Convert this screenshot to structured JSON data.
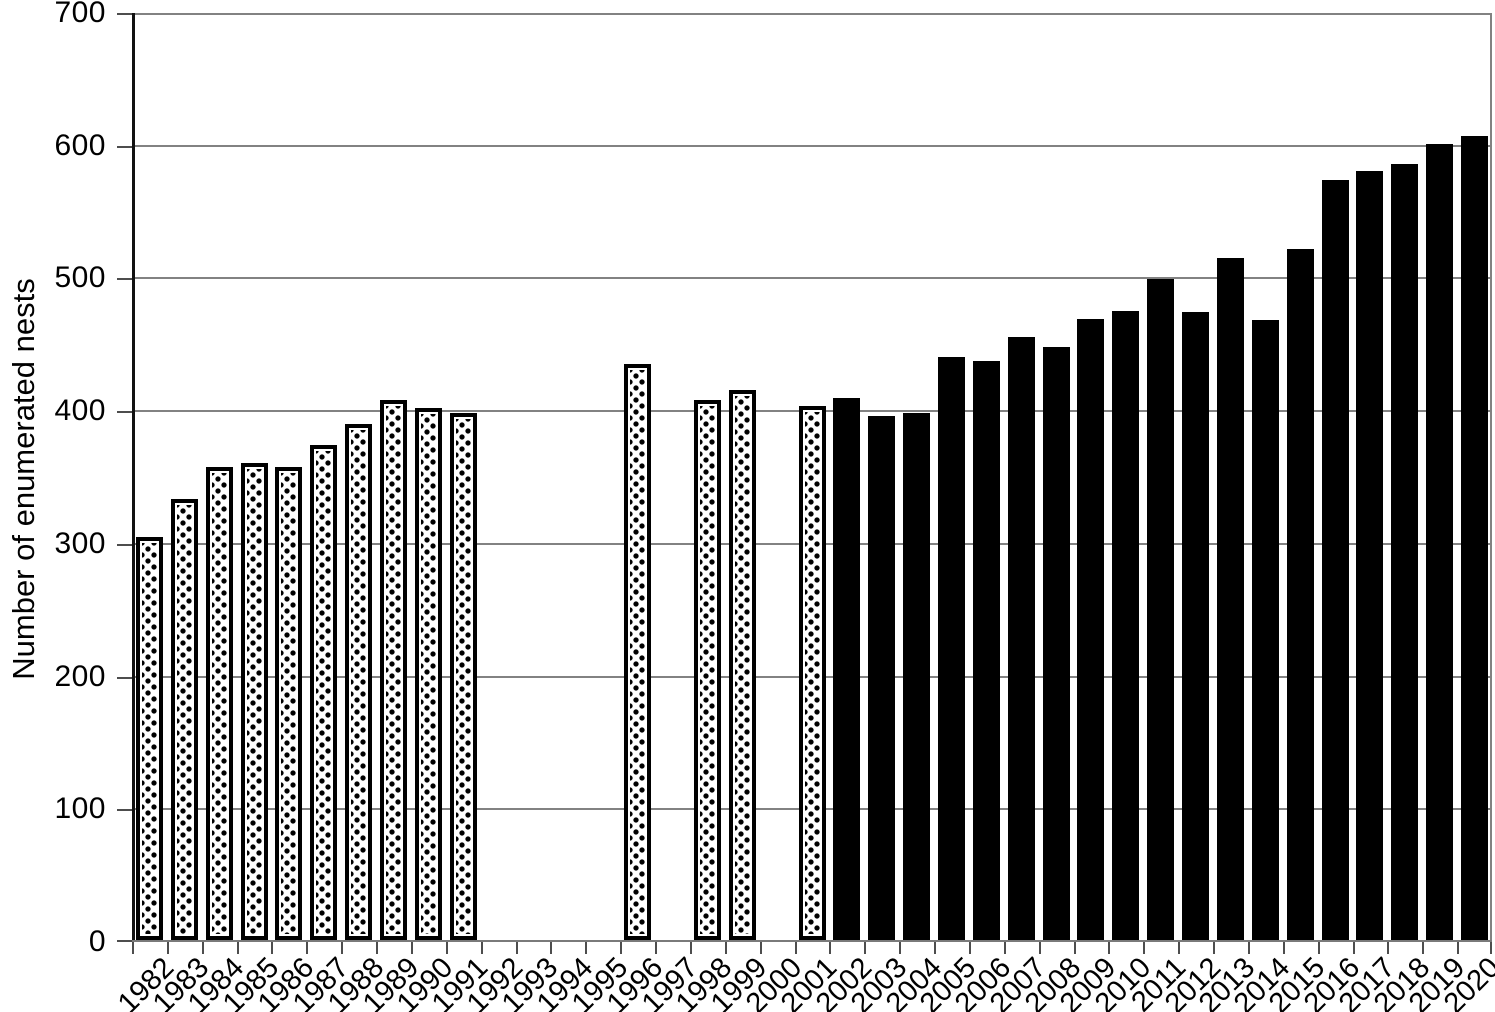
{
  "chart_data": {
    "type": "bar",
    "title": "",
    "xlabel": "",
    "ylabel": "Number of enumerated nests",
    "ylim": [
      0,
      700
    ],
    "ytick_step": 100,
    "ytick_labels": [
      "700",
      "600",
      "500",
      "400",
      "300",
      "200",
      "100",
      "0"
    ],
    "grid": true,
    "legend": null,
    "style_note": "single series; stippled-pattern bars 1982-2001, solid black bars 2002-2020; years 1992-1995, 1997 and 2000 have no bar",
    "bars": [
      {
        "year": "1982",
        "value": 304,
        "style": "dotted"
      },
      {
        "year": "1983",
        "value": 333,
        "style": "dotted"
      },
      {
        "year": "1984",
        "value": 357,
        "style": "dotted"
      },
      {
        "year": "1985",
        "value": 360,
        "style": "dotted"
      },
      {
        "year": "1986",
        "value": 357,
        "style": "dotted"
      },
      {
        "year": "1987",
        "value": 374,
        "style": "dotted"
      },
      {
        "year": "1988",
        "value": 390,
        "style": "dotted"
      },
      {
        "year": "1989",
        "value": 408,
        "style": "dotted"
      },
      {
        "year": "1990",
        "value": 402,
        "style": "dotted"
      },
      {
        "year": "1991",
        "value": 398,
        "style": "dotted"
      },
      {
        "year": "1992",
        "value": null,
        "style": "none"
      },
      {
        "year": "1993",
        "value": null,
        "style": "none"
      },
      {
        "year": "1994",
        "value": null,
        "style": "none"
      },
      {
        "year": "1995",
        "value": null,
        "style": "none"
      },
      {
        "year": "1996",
        "value": 435,
        "style": "dotted"
      },
      {
        "year": "1997",
        "value": null,
        "style": "none"
      },
      {
        "year": "1998",
        "value": 408,
        "style": "dotted"
      },
      {
        "year": "1999",
        "value": 415,
        "style": "dotted"
      },
      {
        "year": "2000",
        "value": null,
        "style": "none"
      },
      {
        "year": "2001",
        "value": 403,
        "style": "dotted"
      },
      {
        "year": "2002",
        "value": 409,
        "style": "solid"
      },
      {
        "year": "2003",
        "value": 396,
        "style": "solid"
      },
      {
        "year": "2004",
        "value": 398,
        "style": "solid"
      },
      {
        "year": "2005",
        "value": 440,
        "style": "solid"
      },
      {
        "year": "2006",
        "value": 437,
        "style": "solid"
      },
      {
        "year": "2007",
        "value": 455,
        "style": "solid"
      },
      {
        "year": "2008",
        "value": 448,
        "style": "solid"
      },
      {
        "year": "2009",
        "value": 469,
        "style": "solid"
      },
      {
        "year": "2010",
        "value": 475,
        "style": "solid"
      },
      {
        "year": "2011",
        "value": 499,
        "style": "solid"
      },
      {
        "year": "2012",
        "value": 474,
        "style": "solid"
      },
      {
        "year": "2013",
        "value": 515,
        "style": "solid"
      },
      {
        "year": "2014",
        "value": 468,
        "style": "solid"
      },
      {
        "year": "2015",
        "value": 522,
        "style": "solid"
      },
      {
        "year": "2016",
        "value": 574,
        "style": "solid"
      },
      {
        "year": "2017",
        "value": 581,
        "style": "solid"
      },
      {
        "year": "2018",
        "value": 586,
        "style": "solid"
      },
      {
        "year": "2019",
        "value": 601,
        "style": "solid"
      },
      {
        "year": "2020",
        "value": 607,
        "style": "solid"
      }
    ],
    "colors": {
      "bar_solid": "#000000",
      "bar_border": "#000000",
      "dotted_fill": "#ffffff",
      "dot_color": "#000000",
      "gridline": "#828282",
      "axis": "#111111",
      "background": "#ffffff",
      "text": "#000000"
    }
  }
}
